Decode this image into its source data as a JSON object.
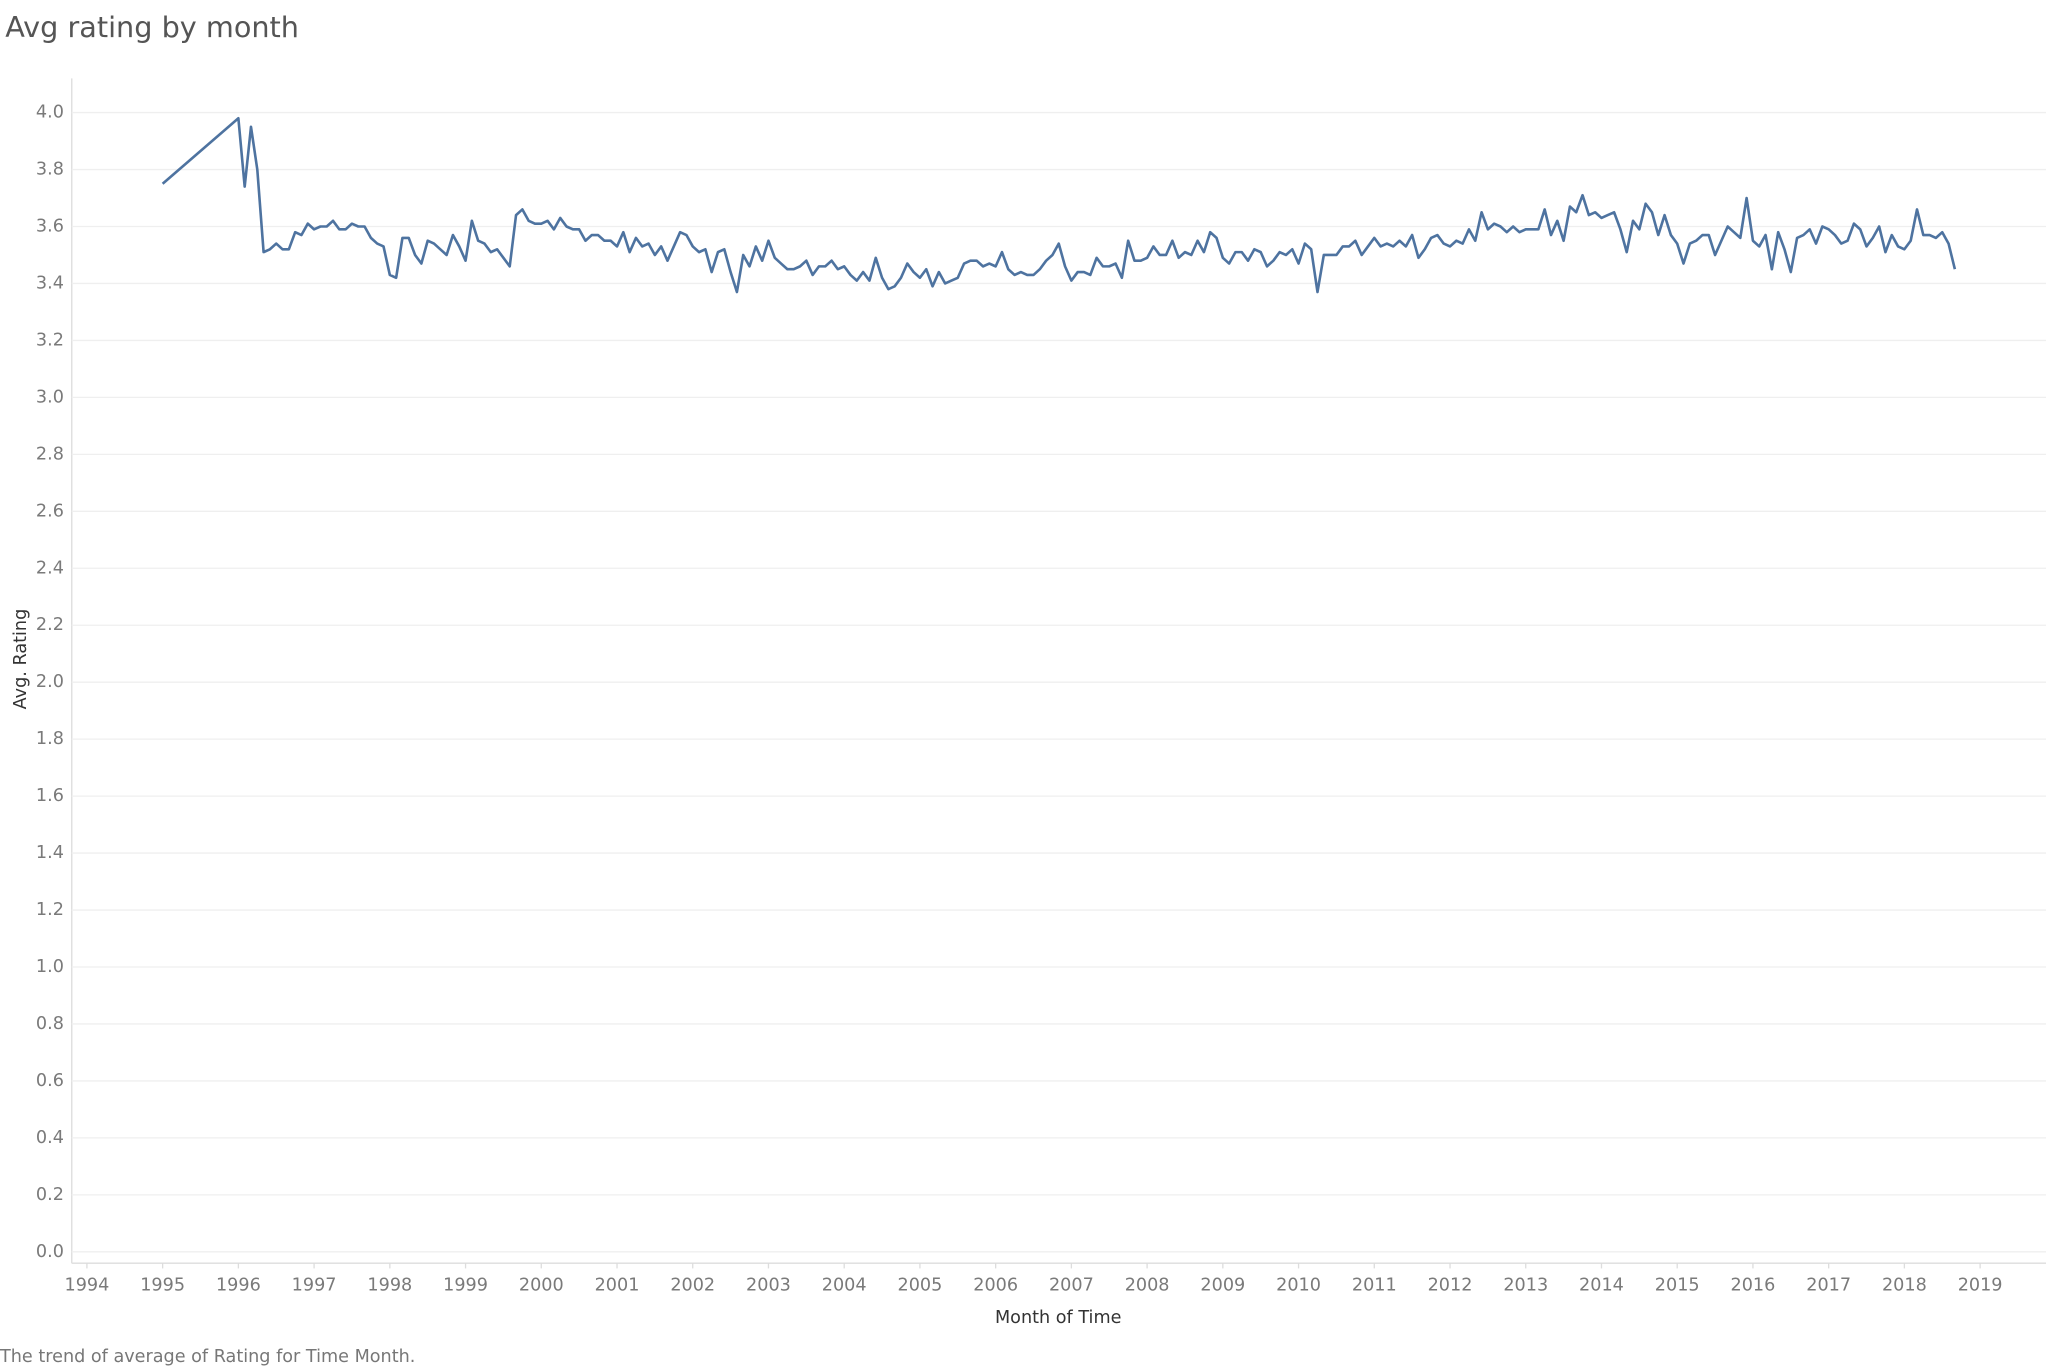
{
  "chart_data": {
    "type": "line",
    "title": "Avg rating by month",
    "x_label": "Month of Time",
    "y_label": "Avg. Rating",
    "caption": "The trend of average of Rating for Time Month.",
    "xlim": [
      1993.8,
      2019.87
    ],
    "xticks": [
      1994,
      1995,
      1996,
      1997,
      1998,
      1999,
      2000,
      2001,
      2002,
      2003,
      2004,
      2005,
      2006,
      2007,
      2008,
      2009,
      2010,
      2011,
      2012,
      2013,
      2014,
      2015,
      2016,
      2017,
      2018,
      2019
    ],
    "ylim": [
      -0.04,
      4.12
    ],
    "yticks": [
      {
        "value": 0,
        "label": "0.0"
      },
      0.2,
      0.4,
      0.6,
      0.8,
      {
        "value": 1,
        "label": "1.0"
      },
      1.2,
      1.4,
      1.6,
      1.8,
      {
        "value": 2,
        "label": "2.0"
      },
      2.2,
      2.4,
      2.6,
      2.8,
      {
        "value": 3,
        "label": "3.0"
      },
      3.2,
      3.4,
      3.6,
      3.8,
      {
        "value": 4,
        "label": "4.0"
      }
    ],
    "grid": true,
    "x": [
      "1995-01",
      "1996-01",
      "1996-02",
      "1996-03",
      "1996-04",
      "1996-05",
      "1996-06",
      "1996-07",
      "1996-08",
      "1996-09",
      "1996-10",
      "1996-11",
      "1996-12",
      "1997-01",
      "1997-02",
      "1997-03",
      "1997-04",
      "1997-05",
      "1997-06",
      "1997-07",
      "1997-08",
      "1997-09",
      "1997-10",
      "1997-11",
      "1997-12",
      "1998-01",
      "1998-02",
      "1998-03",
      "1998-04",
      "1998-05",
      "1998-06",
      "1998-07",
      "1998-08",
      "1998-09",
      "1998-10",
      "1998-11",
      "1998-12",
      "1999-01",
      "1999-02",
      "1999-03",
      "1999-04",
      "1999-05",
      "1999-06",
      "1999-07",
      "1999-08",
      "1999-09",
      "1999-10",
      "1999-11",
      "1999-12",
      "2000-01",
      "2000-02",
      "2000-03",
      "2000-04",
      "2000-05",
      "2000-06",
      "2000-07",
      "2000-08",
      "2000-09",
      "2000-10",
      "2000-11",
      "2000-12",
      "2001-01",
      "2001-02",
      "2001-03",
      "2001-04",
      "2001-05",
      "2001-06",
      "2001-07",
      "2001-08",
      "2001-09",
      "2001-10",
      "2001-11",
      "2001-12",
      "2002-01",
      "2002-02",
      "2002-03",
      "2002-04",
      "2002-05",
      "2002-06",
      "2002-07",
      "2002-08",
      "2002-09",
      "2002-10",
      "2002-11",
      "2002-12",
      "2003-01",
      "2003-02",
      "2003-03",
      "2003-04",
      "2003-05",
      "2003-06",
      "2003-07",
      "2003-08",
      "2003-09",
      "2003-10",
      "2003-11",
      "2003-12",
      "2004-01",
      "2004-02",
      "2004-03",
      "2004-04",
      "2004-05",
      "2004-06",
      "2004-07",
      "2004-08",
      "2004-09",
      "2004-10",
      "2004-11",
      "2004-12",
      "2005-01",
      "2005-02",
      "2005-03",
      "2005-04",
      "2005-05",
      "2005-06",
      "2005-07",
      "2005-08",
      "2005-09",
      "2005-10",
      "2005-11",
      "2005-12",
      "2006-01",
      "2006-02",
      "2006-03",
      "2006-04",
      "2006-05",
      "2006-06",
      "2006-07",
      "2006-08",
      "2006-09",
      "2006-10",
      "2006-11",
      "2006-12",
      "2007-01",
      "2007-02",
      "2007-03",
      "2007-04",
      "2007-05",
      "2007-06",
      "2007-07",
      "2007-08",
      "2007-09",
      "2007-10",
      "2007-11",
      "2007-12",
      "2008-01",
      "2008-02",
      "2008-03",
      "2008-04",
      "2008-05",
      "2008-06",
      "2008-07",
      "2008-08",
      "2008-09",
      "2008-10",
      "2008-11",
      "2008-12",
      "2009-01",
      "2009-02",
      "2009-03",
      "2009-04",
      "2009-05",
      "2009-06",
      "2009-07",
      "2009-08",
      "2009-09",
      "2009-10",
      "2009-11",
      "2009-12",
      "2010-01",
      "2010-02",
      "2010-03",
      "2010-04",
      "2010-05",
      "2010-06",
      "2010-07",
      "2010-08",
      "2010-09",
      "2010-10",
      "2010-11",
      "2010-12",
      "2011-01",
      "2011-02",
      "2011-03",
      "2011-04",
      "2011-05",
      "2011-06",
      "2011-07",
      "2011-08",
      "2011-09",
      "2011-10",
      "2011-11",
      "2011-12",
      "2012-01",
      "2012-02",
      "2012-03",
      "2012-04",
      "2012-05",
      "2012-06",
      "2012-07",
      "2012-08",
      "2012-09",
      "2012-10",
      "2012-11",
      "2012-12",
      "2013-01",
      "2013-02",
      "2013-03",
      "2013-04",
      "2013-05",
      "2013-06",
      "2013-07",
      "2013-08",
      "2013-09",
      "2013-10",
      "2013-11",
      "2013-12",
      "2014-01",
      "2014-02",
      "2014-03",
      "2014-04",
      "2014-05",
      "2014-06",
      "2014-07",
      "2014-08",
      "2014-09",
      "2014-10",
      "2014-11",
      "2014-12",
      "2015-01",
      "2015-02",
      "2015-03",
      "2015-04",
      "2015-05",
      "2015-06",
      "2015-07",
      "2015-08",
      "2015-09",
      "2015-10",
      "2015-11",
      "2015-12",
      "2016-01",
      "2016-02",
      "2016-03",
      "2016-04",
      "2016-05",
      "2016-06",
      "2016-07",
      "2016-08",
      "2016-09",
      "2016-10",
      "2016-11",
      "2016-12",
      "2017-01",
      "2017-02",
      "2017-03",
      "2017-04",
      "2017-05",
      "2017-06",
      "2017-07",
      "2017-08",
      "2017-09",
      "2017-10",
      "2017-11",
      "2017-12",
      "2018-01",
      "2018-02",
      "2018-03",
      "2018-04",
      "2018-05",
      "2018-06",
      "2018-07",
      "2018-08",
      "2018-09"
    ],
    "series": [
      {
        "color": "#4e73a0",
        "values": [
          3.75,
          3.98,
          3.74,
          3.95,
          3.8,
          3.51,
          3.52,
          3.54,
          3.52,
          3.52,
          3.58,
          3.57,
          3.61,
          3.59,
          3.6,
          3.6,
          3.62,
          3.59,
          3.59,
          3.61,
          3.6,
          3.6,
          3.56,
          3.54,
          3.53,
          3.43,
          3.42,
          3.56,
          3.56,
          3.5,
          3.47,
          3.55,
          3.54,
          3.52,
          3.5,
          3.57,
          3.53,
          3.48,
          3.62,
          3.55,
          3.54,
          3.51,
          3.52,
          3.49,
          3.46,
          3.64,
          3.66,
          3.62,
          3.61,
          3.61,
          3.62,
          3.59,
          3.63,
          3.6,
          3.59,
          3.59,
          3.55,
          3.57,
          3.57,
          3.55,
          3.55,
          3.53,
          3.58,
          3.51,
          3.56,
          3.53,
          3.54,
          3.5,
          3.53,
          3.48,
          3.53,
          3.58,
          3.57,
          3.53,
          3.51,
          3.52,
          3.44,
          3.51,
          3.52,
          3.44,
          3.37,
          3.5,
          3.46,
          3.53,
          3.48,
          3.55,
          3.49,
          3.47,
          3.45,
          3.45,
          3.46,
          3.48,
          3.43,
          3.46,
          3.46,
          3.48,
          3.45,
          3.46,
          3.43,
          3.41,
          3.44,
          3.41,
          3.49,
          3.42,
          3.38,
          3.39,
          3.42,
          3.47,
          3.44,
          3.42,
          3.45,
          3.39,
          3.44,
          3.4,
          3.41,
          3.42,
          3.47,
          3.48,
          3.48,
          3.46,
          3.47,
          3.46,
          3.51,
          3.45,
          3.43,
          3.44,
          3.43,
          3.43,
          3.45,
          3.48,
          3.5,
          3.54,
          3.46,
          3.41,
          3.44,
          3.44,
          3.43,
          3.49,
          3.46,
          3.46,
          3.47,
          3.42,
          3.55,
          3.48,
          3.48,
          3.49,
          3.53,
          3.5,
          3.5,
          3.55,
          3.49,
          3.51,
          3.5,
          3.55,
          3.51,
          3.58,
          3.56,
          3.49,
          3.47,
          3.51,
          3.51,
          3.48,
          3.52,
          3.51,
          3.46,
          3.48,
          3.51,
          3.5,
          3.52,
          3.47,
          3.54,
          3.52,
          3.37,
          3.5,
          3.5,
          3.5,
          3.53,
          3.53,
          3.55,
          3.5,
          3.53,
          3.56,
          3.53,
          3.54,
          3.53,
          3.55,
          3.53,
          3.57,
          3.49,
          3.52,
          3.56,
          3.57,
          3.54,
          3.53,
          3.55,
          3.54,
          3.59,
          3.55,
          3.65,
          3.59,
          3.61,
          3.6,
          3.58,
          3.6,
          3.58,
          3.59,
          3.59,
          3.59,
          3.66,
          3.57,
          3.62,
          3.55,
          3.67,
          3.65,
          3.71,
          3.64,
          3.65,
          3.63,
          3.64,
          3.65,
          3.59,
          3.51,
          3.62,
          3.59,
          3.68,
          3.65,
          3.57,
          3.64,
          3.57,
          3.54,
          3.47,
          3.54,
          3.55,
          3.57,
          3.57,
          3.5,
          3.55,
          3.6,
          3.58,
          3.56,
          3.7,
          3.55,
          3.53,
          3.57,
          3.45,
          3.58,
          3.52,
          3.44,
          3.56,
          3.57,
          3.59,
          3.54,
          3.6,
          3.59,
          3.57,
          3.54,
          3.55,
          3.61,
          3.59,
          3.53,
          3.56,
          3.6,
          3.51,
          3.57,
          3.53,
          3.52,
          3.55,
          3.66,
          3.57,
          3.57,
          3.56,
          3.58,
          3.54,
          3.45
        ]
      }
    ]
  }
}
